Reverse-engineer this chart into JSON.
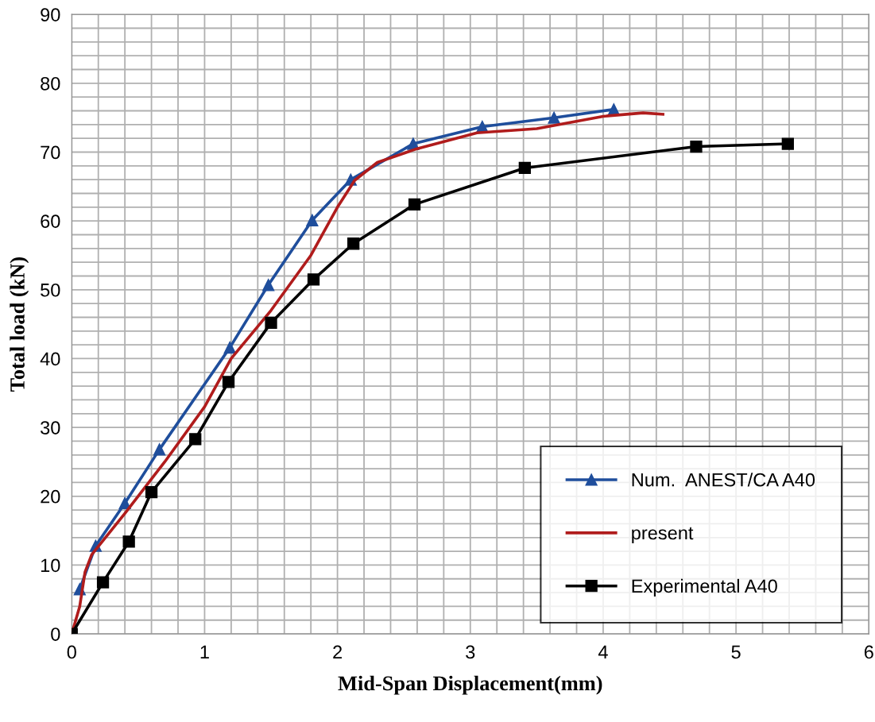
{
  "chart_data": {
    "type": "line",
    "xlabel": "Mid-Span Displacement(mm)",
    "ylabel": "Total load (kN)",
    "xlim": [
      0,
      6
    ],
    "ylim": [
      0,
      90
    ],
    "xticks": [
      0,
      {
        "value": 0.2,
        "label": null
      },
      {
        "value": 0.4,
        "label": null
      },
      {
        "value": 0.6,
        "label": null
      },
      {
        "value": 0.8,
        "label": null
      },
      1,
      {
        "value": 1.2,
        "label": null
      },
      {
        "value": 1.4,
        "label": null
      },
      {
        "value": 1.6,
        "label": null
      },
      {
        "value": 1.8,
        "label": null
      },
      2,
      {
        "value": 2.2,
        "label": null
      },
      {
        "value": 2.4,
        "label": null
      },
      {
        "value": 2.6,
        "label": null
      },
      {
        "value": 2.8,
        "label": null
      },
      3,
      {
        "value": 3.2,
        "label": null
      },
      {
        "value": 3.4,
        "label": null
      },
      {
        "value": 3.6,
        "label": null
      },
      {
        "value": 3.8,
        "label": null
      },
      4,
      {
        "value": 4.2,
        "label": null
      },
      {
        "value": 4.4,
        "label": null
      },
      {
        "value": 4.6,
        "label": null
      },
      {
        "value": 4.8,
        "label": null
      },
      5,
      {
        "value": 5.2,
        "label": null
      },
      {
        "value": 5.4,
        "label": null
      },
      {
        "value": 5.6,
        "label": null
      },
      {
        "value": 5.8,
        "label": null
      },
      6
    ],
    "yticks": [
      0,
      {
        "value": 2,
        "label": null
      },
      {
        "value": 4,
        "label": null
      },
      {
        "value": 6,
        "label": null
      },
      {
        "value": 8,
        "label": null
      },
      10,
      {
        "value": 12,
        "label": null
      },
      {
        "value": 14,
        "label": null
      },
      {
        "value": 16,
        "label": null
      },
      {
        "value": 18,
        "label": null
      },
      20,
      {
        "value": 22,
        "label": null
      },
      {
        "value": 24,
        "label": null
      },
      {
        "value": 26,
        "label": null
      },
      {
        "value": 28,
        "label": null
      },
      30,
      {
        "value": 32,
        "label": null
      },
      {
        "value": 34,
        "label": null
      },
      {
        "value": 36,
        "label": null
      },
      {
        "value": 38,
        "label": null
      },
      40,
      {
        "value": 42,
        "label": null
      },
      {
        "value": 44,
        "label": null
      },
      {
        "value": 46,
        "label": null
      },
      {
        "value": 48,
        "label": null
      },
      50,
      {
        "value": 52,
        "label": null
      },
      {
        "value": 54,
        "label": null
      },
      {
        "value": 56,
        "label": null
      },
      {
        "value": 58,
        "label": null
      },
      60,
      {
        "value": 62,
        "label": null
      },
      {
        "value": 64,
        "label": null
      },
      {
        "value": 66,
        "label": null
      },
      {
        "value": 68,
        "label": null
      },
      70,
      {
        "value": 72,
        "label": null
      },
      {
        "value": 74,
        "label": null
      },
      {
        "value": 76,
        "label": null
      },
      {
        "value": 78,
        "label": null
      },
      80,
      {
        "value": 82,
        "label": null
      },
      {
        "value": 84,
        "label": null
      },
      {
        "value": 86,
        "label": null
      },
      {
        "value": 88,
        "label": null
      },
      90
    ],
    "grid": true,
    "legend": "bottom right",
    "line_style": "solid",
    "series": [
      {
        "name": "Num.  ANEST/CA A40",
        "color": "#1f4e9c",
        "marker": "triangle",
        "x": [
          0.06,
          0.18,
          0.4,
          0.66,
          1.19,
          1.48,
          1.81,
          2.1,
          2.57,
          3.09,
          3.63,
          4.08
        ],
        "values": [
          6.5,
          12.8,
          19.0,
          26.8,
          41.6,
          50.7,
          60.1,
          66.0,
          71.2,
          73.7,
          75.0,
          76.2
        ]
      },
      {
        "name": "present",
        "color": "#b01c1c",
        "marker": "none",
        "x": [
          0,
          0.06,
          0.1,
          0.15,
          0.4,
          0.7,
          1.0,
          1.2,
          1.5,
          1.8,
          2.0,
          2.13,
          2.3,
          2.6,
          3.05,
          3.5,
          4.0,
          4.3,
          4.45
        ],
        "values": [
          0,
          4,
          9,
          11.5,
          17.5,
          25,
          33,
          40,
          47,
          55,
          62,
          65.9,
          68.5,
          70.5,
          72.8,
          73.4,
          75.2,
          75.7,
          75.5
        ]
      },
      {
        "name": "Experimental A40",
        "color": "#000000",
        "marker": "square",
        "x": [
          0,
          0.235,
          0.43,
          0.6,
          0.93,
          1.18,
          1.5,
          1.82,
          2.12,
          2.58,
          3.41,
          4.7,
          5.39
        ],
        "values": [
          0,
          7.5,
          13.4,
          20.6,
          28.3,
          36.6,
          45.2,
          51.5,
          56.7,
          62.4,
          67.7,
          70.8,
          71.2
        ]
      }
    ]
  }
}
